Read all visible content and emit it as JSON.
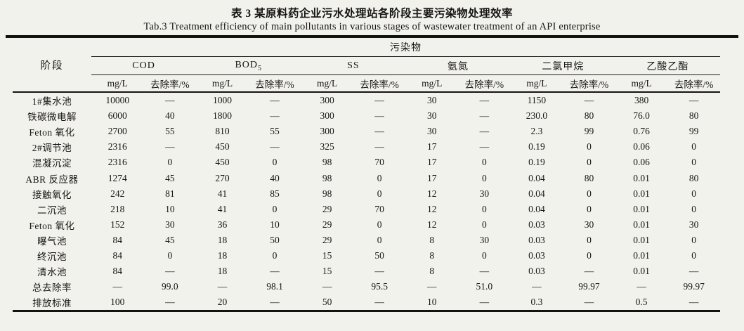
{
  "caption": {
    "zh": "表 3  某原料药企业污水处理站各阶段主要污染物处理效率",
    "en": "Tab.3   Treatment efficiency of main pollutants in various stages of wastewater treatment of an API enterprise"
  },
  "table": {
    "corner_header": "阶段",
    "group_header": "污染物",
    "pollutants": [
      {
        "name": "COD",
        "sub": ""
      },
      {
        "name": "BOD",
        "sub": "5"
      },
      {
        "name": "SS",
        "sub": ""
      },
      {
        "name": "氨氮",
        "sub": ""
      },
      {
        "name": "二氯甲烷",
        "sub": ""
      },
      {
        "name": "乙酸乙酯",
        "sub": ""
      }
    ],
    "unit_labels": [
      "mg/L",
      "去除率/%"
    ],
    "rows": [
      {
        "stage": "1#集水池",
        "values": [
          "10000",
          "—",
          "1000",
          "—",
          "300",
          "—",
          "30",
          "—",
          "1150",
          "—",
          "380",
          "—"
        ]
      },
      {
        "stage": "铁碳微电解",
        "values": [
          "6000",
          "40",
          "1800",
          "—",
          "300",
          "—",
          "30",
          "—",
          "230.0",
          "80",
          "76.0",
          "80"
        ]
      },
      {
        "stage": "Feton 氧化",
        "values": [
          "2700",
          "55",
          "810",
          "55",
          "300",
          "—",
          "30",
          "—",
          "2.3",
          "99",
          "0.76",
          "99"
        ]
      },
      {
        "stage": "2#调节池",
        "values": [
          "2316",
          "—",
          "450",
          "—",
          "325",
          "—",
          "17",
          "—",
          "0.19",
          "0",
          "0.06",
          "0"
        ]
      },
      {
        "stage": "混凝沉淀",
        "values": [
          "2316",
          "0",
          "450",
          "0",
          "98",
          "70",
          "17",
          "0",
          "0.19",
          "0",
          "0.06",
          "0"
        ]
      },
      {
        "stage": "ABR 反应器",
        "values": [
          "1274",
          "45",
          "270",
          "40",
          "98",
          "0",
          "17",
          "0",
          "0.04",
          "80",
          "0.01",
          "80"
        ]
      },
      {
        "stage": "接触氧化",
        "values": [
          "242",
          "81",
          "41",
          "85",
          "98",
          "0",
          "12",
          "30",
          "0.04",
          "0",
          "0.01",
          "0"
        ]
      },
      {
        "stage": "二沉池",
        "values": [
          "218",
          "10",
          "41",
          "0",
          "29",
          "70",
          "12",
          "0",
          "0.04",
          "0",
          "0.01",
          "0"
        ]
      },
      {
        "stage": "Feton 氧化",
        "values": [
          "152",
          "30",
          "36",
          "10",
          "29",
          "0",
          "12",
          "0",
          "0.03",
          "30",
          "0.01",
          "30"
        ]
      },
      {
        "stage": "曝气池",
        "values": [
          "84",
          "45",
          "18",
          "50",
          "29",
          "0",
          "8",
          "30",
          "0.03",
          "0",
          "0.01",
          "0"
        ]
      },
      {
        "stage": "终沉池",
        "values": [
          "84",
          "0",
          "18",
          "0",
          "15",
          "50",
          "8",
          "0",
          "0.03",
          "0",
          "0.01",
          "0"
        ]
      },
      {
        "stage": "清水池",
        "values": [
          "84",
          "—",
          "18",
          "—",
          "15",
          "—",
          "8",
          "—",
          "0.03",
          "—",
          "0.01",
          "—"
        ]
      },
      {
        "stage": "总去除率",
        "values": [
          "—",
          "99.0",
          "—",
          "98.1",
          "—",
          "95.5",
          "—",
          "51.0",
          "—",
          "99.97",
          "—",
          "99.97"
        ]
      },
      {
        "stage": "排放标准",
        "values": [
          "100",
          "—",
          "20",
          "—",
          "50",
          "—",
          "10",
          "—",
          "0.3",
          "—",
          "0.5",
          "—"
        ]
      }
    ]
  }
}
